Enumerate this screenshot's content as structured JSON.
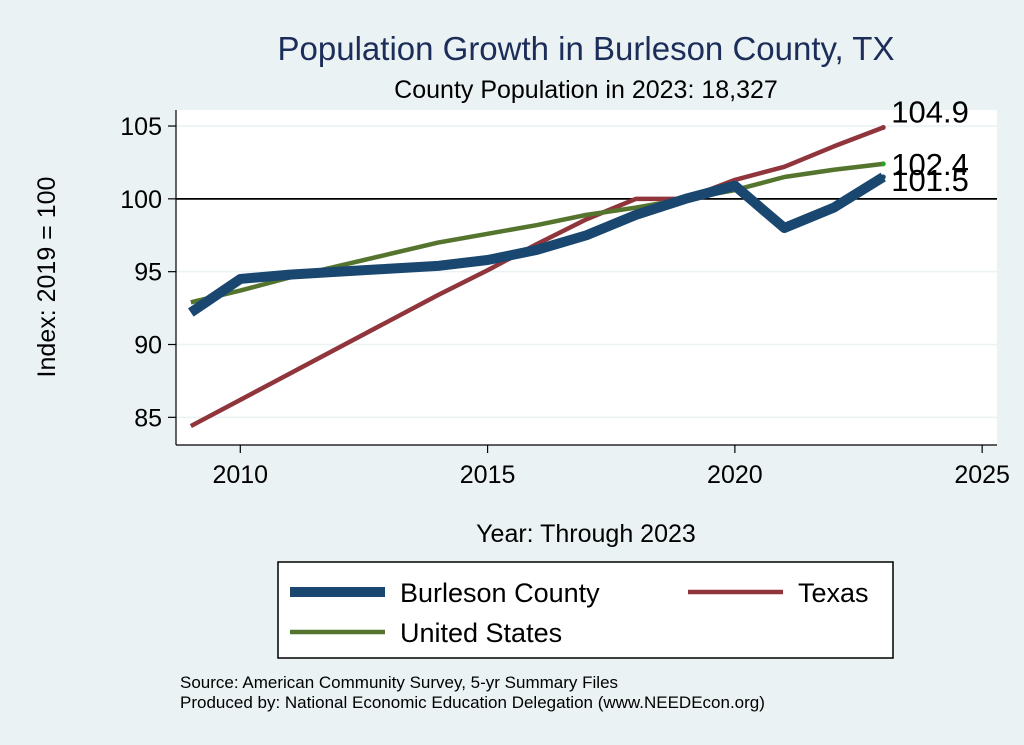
{
  "chart_data": {
    "type": "line",
    "title": "Population Growth in Burleson County, TX",
    "subtitle": "County Population in 2023: 18,327",
    "xlabel": "Year: Through 2023",
    "ylabel": "Index: 2019 = 100",
    "xlim": [
      2008.7,
      2025.3
    ],
    "ylim": [
      83.1,
      106.1
    ],
    "xticks": [
      2010,
      2015,
      2020,
      2025
    ],
    "yticks": [
      85,
      90,
      95,
      100,
      105
    ],
    "reference_line": 100,
    "grid": true,
    "legend_position": "bottom",
    "x": [
      2009,
      2010,
      2011,
      2012,
      2013,
      2014,
      2015,
      2016,
      2017,
      2018,
      2019,
      2020,
      2021,
      2022,
      2023
    ],
    "series": [
      {
        "name": "Burleson  County",
        "color": "#1a476f",
        "values": [
          92.2,
          94.5,
          94.8,
          95.0,
          95.2,
          95.4,
          95.8,
          96.5,
          97.5,
          98.9,
          100.0,
          100.9,
          98.0,
          99.4,
          101.5
        ]
      },
      {
        "name": "Texas",
        "color": "#90353b",
        "values": [
          84.4,
          86.2,
          88.0,
          89.8,
          91.6,
          93.4,
          95.1,
          96.9,
          98.6,
          100.0,
          100.0,
          101.3,
          102.2,
          103.6,
          104.9
        ]
      },
      {
        "name": "United States",
        "color": "#55752f",
        "values": [
          92.9,
          93.7,
          94.6,
          95.4,
          96.2,
          97.0,
          97.6,
          98.2,
          98.9,
          99.4,
          100.0,
          100.6,
          101.5,
          102.0,
          102.4
        ]
      }
    ],
    "end_labels": [
      "104.9",
      "102.4",
      "101.5"
    ]
  },
  "notes": {
    "source": "Source: American Community Survey, 5-yr Summary Files",
    "produced": "Produced by: National Economic Education Delegation (www.NEEDEcon.org)"
  }
}
